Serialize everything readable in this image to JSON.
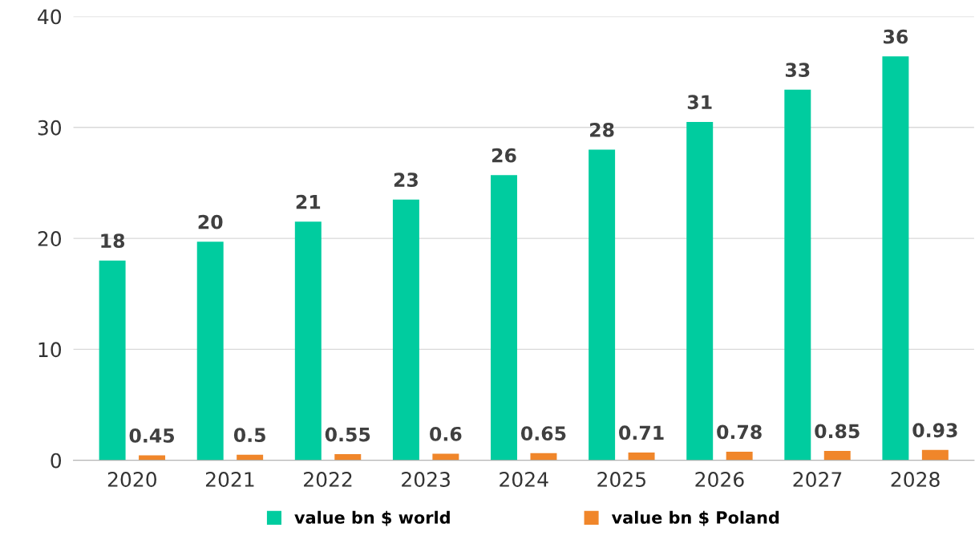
{
  "chart_data": {
    "type": "bar",
    "categories": [
      "2020",
      "2021",
      "2022",
      "2023",
      "2024",
      "2025",
      "2026",
      "2027",
      "2028"
    ],
    "series": [
      {
        "name": "value bn $ world",
        "color": "#00cc9f",
        "values": [
          18.0,
          19.7,
          21.5,
          23.5,
          25.7,
          28.0,
          30.5,
          33.4,
          36.4
        ],
        "value_labels": [
          "18",
          "20",
          "21",
          "23",
          "26",
          "28",
          "31",
          "33",
          "36"
        ]
      },
      {
        "name": "value bn $ Poland",
        "color": "#f0862a",
        "values": [
          0.45,
          0.5,
          0.55,
          0.6,
          0.65,
          0.71,
          0.78,
          0.85,
          0.93
        ],
        "value_labels": [
          "0.45",
          "0.5",
          "0.55",
          "0.6",
          "0.65",
          "0.71",
          "0.78",
          "0.85",
          "0.93"
        ]
      }
    ],
    "ylim": [
      0,
      40
    ],
    "yticks": [
      0,
      10,
      20,
      30,
      40
    ],
    "grid": "y",
    "legend": "bottom"
  }
}
